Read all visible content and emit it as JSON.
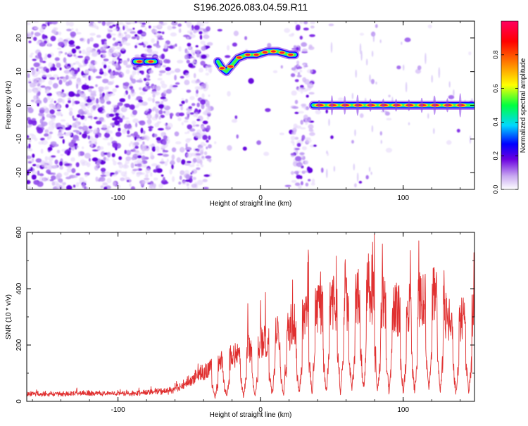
{
  "title": "S196.2026.083.04.59.R11",
  "chart_data": [
    {
      "type": "heatmap",
      "xlabel": "Height of straight line (km)",
      "ylabel": "Frequency (Hz)",
      "xlim": [
        -164,
        150
      ],
      "ylim": [
        -25,
        25
      ],
      "x_ticks": [
        -100,
        0,
        100
      ],
      "x_tick_labels": [
        "-100",
        "0",
        "100"
      ],
      "y_ticks": [
        -20,
        -10,
        0,
        10,
        20
      ],
      "y_tick_labels": [
        "-20",
        "-10",
        "0",
        "10",
        "20"
      ],
      "colorbar": {
        "label": "Normalized spectral amplitude",
        "range": [
          0,
          1
        ],
        "ticks": [
          0.0,
          0.2,
          0.4,
          0.6,
          0.8
        ],
        "tick_labels": [
          "0.0",
          "0.2",
          "0.4",
          "0.6",
          "0.8"
        ]
      },
      "ridges": [
        {
          "x": [
            -88,
            -82
          ],
          "y": [
            13,
            13
          ]
        },
        {
          "x": [
            -80,
            -74
          ],
          "y": [
            13,
            13
          ]
        },
        {
          "x": [
            -30,
            -27,
            -24,
            -20,
            -16,
            -10,
            -3,
            5,
            12,
            20,
            24
          ],
          "y": [
            13,
            11,
            10,
            12,
            14,
            15,
            15,
            16,
            16,
            15,
            15
          ]
        },
        {
          "x": [
            37,
            149
          ],
          "y": [
            0,
            0
          ]
        }
      ]
    },
    {
      "type": "line",
      "xlabel": "Height of straight line (km)",
      "ylabel": "SNR (10 * v/v)",
      "xlim": [
        -164,
        150
      ],
      "ylim": [
        0,
        600
      ],
      "x_ticks": [
        -100,
        0,
        100
      ],
      "x_tick_labels": [
        "-100",
        "0",
        "100"
      ],
      "y_ticks": [
        0,
        200,
        400,
        600
      ],
      "y_tick_labels": [
        "0",
        "200",
        "400",
        "600"
      ],
      "color": "#e03030",
      "envelope": {
        "x": [
          -164,
          -130,
          -100,
          -80,
          -60,
          -50,
          -40,
          -30,
          -20,
          -10,
          0,
          10,
          20,
          30,
          40,
          50,
          60,
          70,
          75,
          80,
          90,
          100,
          110,
          115,
          120,
          125,
          130,
          140,
          150
        ],
        "y": [
          25,
          30,
          30,
          35,
          45,
          90,
          130,
          160,
          200,
          240,
          260,
          300,
          310,
          360,
          420,
          440,
          450,
          480,
          520,
          460,
          430,
          400,
          440,
          480,
          470,
          520,
          380,
          360,
          380
        ]
      },
      "dips_x": [
        -32,
        -24,
        -12,
        -4,
        8,
        16,
        27,
        36,
        46,
        56,
        64,
        72,
        82,
        90,
        100,
        108,
        118,
        126,
        137,
        146
      ]
    }
  ]
}
